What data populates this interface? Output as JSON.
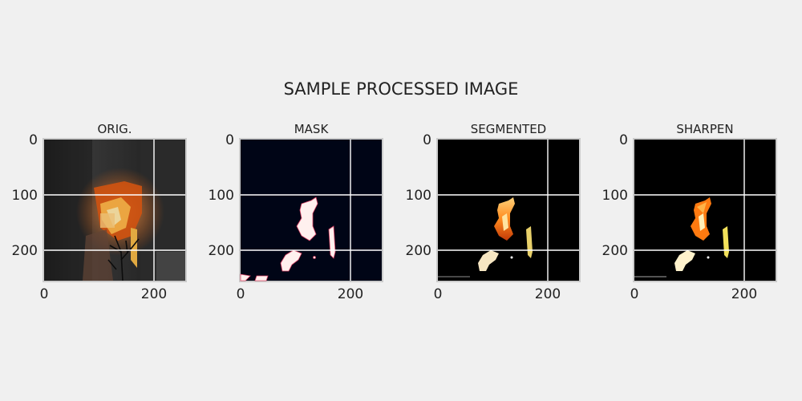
{
  "figure": {
    "title": "SAMPLE PROCESSED IMAGE"
  },
  "colors": {
    "background": "#f0f0f0",
    "axes_frame": "#cccccc",
    "grid": "#ffffff",
    "mask_background": "#000516",
    "segmented_background": "#000000"
  },
  "chart_data": [
    {
      "type": "image",
      "title": "ORIG.",
      "x_ticks": [
        "0",
        "200"
      ],
      "y_ticks": [
        "0",
        "100",
        "200"
      ],
      "x_range": [
        0,
        255
      ],
      "y_range": [
        0,
        255
      ],
      "grid": true,
      "content": "photo of a building on fire"
    },
    {
      "type": "image",
      "title": "MASK",
      "x_ticks": [
        "0",
        "200"
      ],
      "y_ticks": [
        "0",
        "100",
        "200"
      ],
      "x_range": [
        0,
        255
      ],
      "y_range": [
        0,
        255
      ],
      "grid": true,
      "content": "binary fire mask"
    },
    {
      "type": "image",
      "title": "SEGMENTED",
      "x_ticks": [
        "0",
        "200"
      ],
      "y_ticks": [
        "0",
        "100",
        "200"
      ],
      "x_range": [
        0,
        255
      ],
      "y_range": [
        0,
        255
      ],
      "grid": true,
      "content": "fire pixels on black"
    },
    {
      "type": "image",
      "title": "SHARPEN",
      "x_ticks": [
        "0",
        "200"
      ],
      "y_ticks": [
        "0",
        "100",
        "200"
      ],
      "x_range": [
        0,
        255
      ],
      "y_range": [
        0,
        255
      ],
      "grid": true,
      "content": "sharpened segmented fire"
    }
  ]
}
